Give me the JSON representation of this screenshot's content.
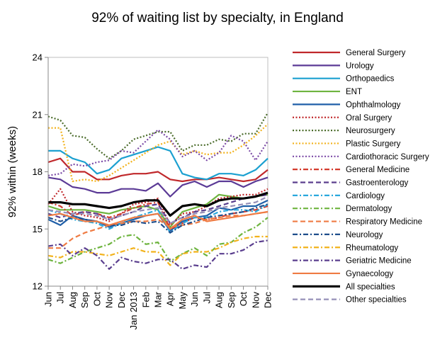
{
  "chart_data": {
    "type": "line",
    "title": "92% of waiting list by specialty, in England",
    "xlabel": "",
    "ylabel": "92% within (weeks)",
    "ylim": [
      12,
      24
    ],
    "yticks": [
      12,
      15,
      18,
      21,
      24
    ],
    "grid": false,
    "legend_position": "right",
    "x": [
      "Jun",
      "Jul",
      "Aug",
      "Sep",
      "Oct",
      "Nov",
      "Dec",
      "Jan 2013",
      "Feb",
      "Mar",
      "Apr",
      "May",
      "Jun",
      "Jul",
      "Aug",
      "Sep",
      "Oct",
      "Nov",
      "Dec"
    ],
    "series": [
      {
        "name": "General Surgery",
        "color": "#c0282b",
        "dash": "solid",
        "width": 2.2,
        "values": [
          18.5,
          18.7,
          18.0,
          18.0,
          17.6,
          17.6,
          17.8,
          17.9,
          17.9,
          18.0,
          17.6,
          17.5,
          17.6,
          17.6,
          17.7,
          17.6,
          17.5,
          17.6,
          18.1
        ]
      },
      {
        "name": "Urology",
        "color": "#5b3a96",
        "dash": "solid",
        "width": 2.2,
        "values": [
          17.7,
          17.6,
          17.2,
          17.1,
          16.9,
          16.9,
          17.1,
          17.1,
          17.0,
          17.4,
          16.7,
          17.3,
          17.5,
          17.2,
          17.5,
          17.5,
          17.2,
          17.5,
          17.7
        ]
      },
      {
        "name": "Orthopaedics",
        "color": "#1ba0d0",
        "dash": "solid",
        "width": 2.2,
        "values": [
          19.1,
          19.1,
          18.7,
          18.5,
          17.9,
          18.1,
          18.7,
          18.9,
          19.1,
          19.3,
          19.1,
          17.9,
          17.7,
          17.6,
          17.9,
          17.9,
          17.8,
          18.1,
          18.7
        ]
      },
      {
        "name": "ENT",
        "color": "#6eb43f",
        "dash": "solid",
        "width": 2.2,
        "values": [
          16.2,
          16.0,
          16.0,
          16.0,
          15.9,
          15.8,
          16.0,
          16.1,
          16.2,
          16.0,
          15.1,
          15.9,
          16.1,
          16.3,
          16.8,
          16.7,
          16.6,
          16.7,
          16.8
        ]
      },
      {
        "name": "Ophthalmology",
        "color": "#1f5fa8",
        "dash": "solid",
        "width": 2.2,
        "values": [
          15.5,
          15.2,
          15.7,
          15.5,
          15.4,
          15.1,
          15.3,
          15.5,
          15.7,
          15.8,
          14.9,
          15.4,
          15.6,
          15.7,
          16.1,
          16.0,
          16.2,
          16.2,
          16.5
        ]
      },
      {
        "name": "Oral Surgery",
        "color": "#c0282b",
        "dash": "dot",
        "width": 2.2,
        "values": [
          16.3,
          17.1,
          15.9,
          15.7,
          15.6,
          15.4,
          15.8,
          16.3,
          16.4,
          16.6,
          15.2,
          15.8,
          15.9,
          16.2,
          16.6,
          16.7,
          16.8,
          16.8,
          17.1
        ]
      },
      {
        "name": "Neurosurgery",
        "color": "#4a6b2a",
        "dash": "dot",
        "width": 2.2,
        "values": [
          20.9,
          20.7,
          19.9,
          19.8,
          19.2,
          18.7,
          19.1,
          19.7,
          19.9,
          20.1,
          20.1,
          19.1,
          19.4,
          19.4,
          19.7,
          19.6,
          20.0,
          20.0,
          21.1
        ]
      },
      {
        "name": "Plastic Surgery",
        "color": "#f2b21b",
        "dash": "dot",
        "width": 2.2,
        "values": [
          20.3,
          20.3,
          17.5,
          17.6,
          17.5,
          17.8,
          18.2,
          18.6,
          19.0,
          19.4,
          19.6,
          18.9,
          19.1,
          18.9,
          19.0,
          19.0,
          19.4,
          19.9,
          20.5
        ]
      },
      {
        "name": "Cardiothoracic Surgery",
        "color": "#7b4aa6",
        "dash": "dot",
        "width": 2.2,
        "values": [
          17.8,
          17.9,
          18.4,
          18.3,
          18.5,
          18.6,
          19.1,
          19.0,
          19.6,
          20.2,
          19.7,
          18.8,
          19.1,
          18.6,
          19.0,
          19.9,
          19.6,
          18.6,
          19.6
        ]
      },
      {
        "name": "General Medicine",
        "color": "#d33a2c",
        "dash": "dashdot",
        "width": 2.2,
        "values": [
          16.4,
          16.2,
          15.7,
          15.9,
          15.8,
          15.6,
          15.8,
          16.1,
          16.3,
          16.4,
          15.0,
          15.3,
          15.6,
          15.5,
          15.6,
          15.8,
          15.9,
          16.0,
          16.2
        ]
      },
      {
        "name": "Gastroenterology",
        "color": "#5a3e8e",
        "dash": "dash",
        "width": 2.2,
        "values": [
          15.8,
          15.6,
          15.8,
          15.9,
          15.8,
          15.5,
          15.7,
          15.9,
          16.2,
          16.3,
          15.3,
          15.6,
          15.9,
          16.0,
          16.2,
          16.4,
          16.6,
          16.7,
          16.8
        ]
      },
      {
        "name": "Cardiology",
        "color": "#29a8dd",
        "dash": "dashdot",
        "width": 2.2,
        "values": [
          16.0,
          15.8,
          15.5,
          15.4,
          15.3,
          15.0,
          15.3,
          15.6,
          15.8,
          16.0,
          14.8,
          15.3,
          15.6,
          15.6,
          15.9,
          16.0,
          16.0,
          15.9,
          16.3
        ]
      },
      {
        "name": "Dermatology",
        "color": "#6eb43f",
        "dash": "dashdot",
        "width": 2.2,
        "values": [
          13.4,
          13.2,
          13.5,
          13.8,
          14.0,
          14.2,
          14.6,
          14.7,
          14.2,
          14.3,
          13.3,
          13.7,
          14.0,
          13.6,
          14.2,
          14.3,
          14.8,
          15.1,
          15.6
        ]
      },
      {
        "name": "Respiratory Medicine",
        "color": "#ef7b43",
        "dash": "dash",
        "width": 2.2,
        "values": [
          14.0,
          14.0,
          14.5,
          14.8,
          15.0,
          15.2,
          15.3,
          15.4,
          15.4,
          15.5,
          15.1,
          15.2,
          15.3,
          15.5,
          15.6,
          15.7,
          15.7,
          15.8,
          15.9
        ]
      },
      {
        "name": "Neurology",
        "color": "#1f4e8c",
        "dash": "dashdot",
        "width": 2.2,
        "values": [
          15.6,
          15.4,
          15.6,
          15.5,
          15.4,
          15.2,
          15.2,
          15.4,
          15.3,
          15.4,
          14.8,
          15.2,
          15.4,
          15.6,
          15.7,
          15.8,
          15.9,
          16.1,
          16.3
        ]
      },
      {
        "name": "Rheumatology",
        "color": "#f2b21b",
        "dash": "dashdot",
        "width": 2.2,
        "values": [
          13.6,
          13.5,
          13.8,
          13.8,
          13.7,
          13.6,
          13.8,
          14.0,
          13.8,
          13.8,
          13.1,
          13.7,
          13.8,
          13.8,
          14.0,
          14.3,
          14.5,
          14.6,
          14.6
        ]
      },
      {
        "name": "Geriatric Medicine",
        "color": "#5a3e8e",
        "dash": "dashdot",
        "width": 2.2,
        "values": [
          14.1,
          14.2,
          13.6,
          14.0,
          13.6,
          12.9,
          13.5,
          13.3,
          13.2,
          13.4,
          13.4,
          12.9,
          13.1,
          13.0,
          13.7,
          13.7,
          13.9,
          14.3,
          14.4
        ]
      },
      {
        "name": "Gynaecology",
        "color": "#ef7b43",
        "dash": "solid",
        "width": 2.2,
        "values": [
          15.7,
          15.8,
          15.6,
          15.4,
          15.4,
          15.2,
          15.4,
          15.6,
          15.7,
          15.8,
          15.0,
          15.5,
          15.7,
          15.4,
          15.5,
          15.6,
          15.7,
          15.8,
          15.9
        ]
      },
      {
        "name": "All specialties",
        "color": "#000000",
        "dash": "solid",
        "width": 3.2,
        "values": [
          16.4,
          16.4,
          16.3,
          16.3,
          16.2,
          16.1,
          16.2,
          16.4,
          16.5,
          16.5,
          15.7,
          16.2,
          16.3,
          16.2,
          16.5,
          16.6,
          16.6,
          16.7,
          16.9
        ]
      },
      {
        "name": "Other specialties",
        "color": "#9690b8",
        "dash": "dash",
        "width": 2.2,
        "values": [
          16.0,
          15.9,
          15.8,
          15.8,
          15.7,
          15.5,
          15.7,
          15.9,
          16.0,
          16.1,
          15.3,
          15.6,
          15.8,
          15.9,
          16.1,
          16.2,
          16.3,
          16.4,
          16.7
        ]
      }
    ]
  }
}
